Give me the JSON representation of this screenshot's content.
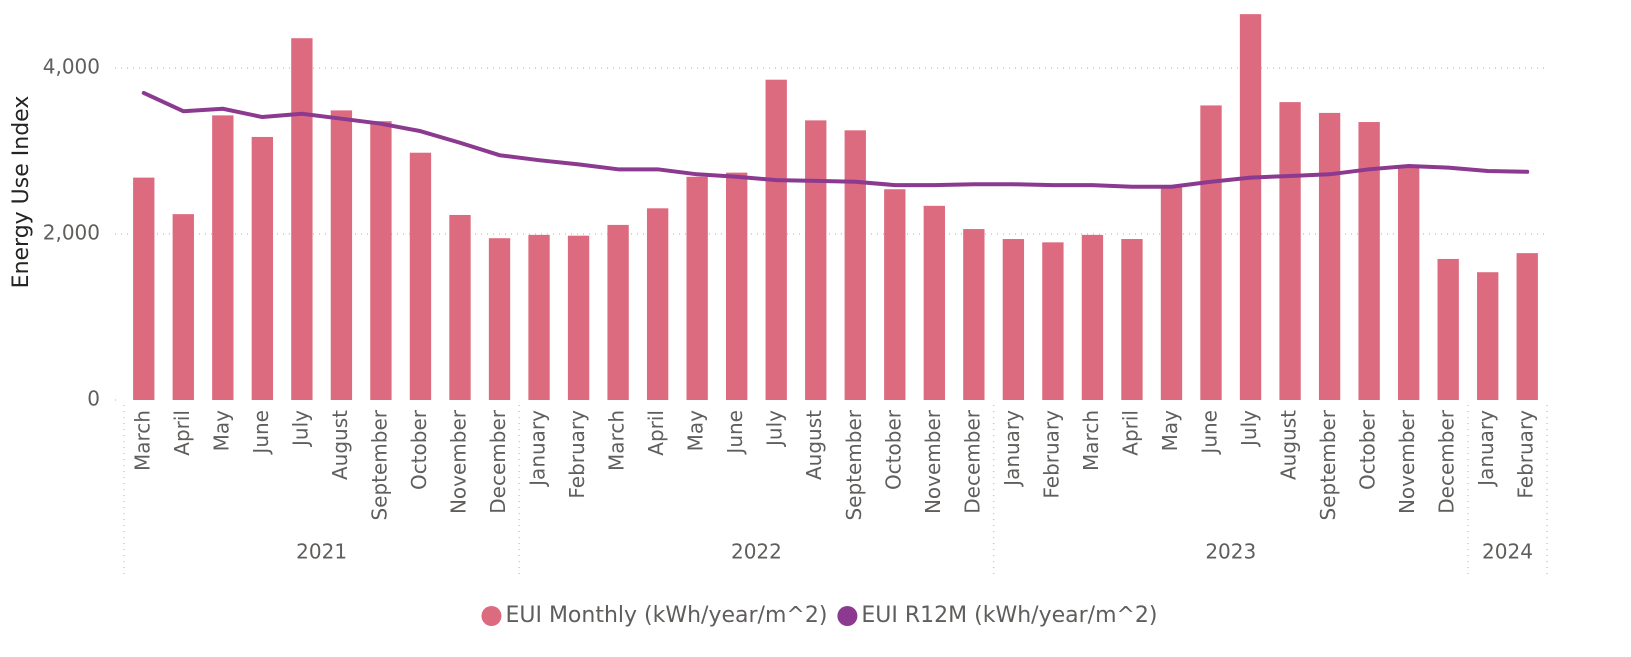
{
  "chart_data": {
    "type": "bar_line",
    "y_label": "Energy Use Index",
    "groups": [
      {
        "label": "2021",
        "categories": [
          "March",
          "April",
          "May",
          "June",
          "July",
          "August",
          "September",
          "October",
          "November",
          "December"
        ]
      },
      {
        "label": "2022",
        "categories": [
          "January",
          "February",
          "March",
          "April",
          "May",
          "June",
          "July",
          "August",
          "September",
          "October",
          "November",
          "December"
        ]
      },
      {
        "label": "2023",
        "categories": [
          "January",
          "February",
          "March",
          "April",
          "May",
          "June",
          "July",
          "August",
          "September",
          "October",
          "November",
          "December"
        ]
      },
      {
        "label": "2024",
        "categories": [
          "January",
          "February"
        ]
      }
    ],
    "series": [
      {
        "name": "EUI Monthly (kWh/year/m^2)",
        "type": "bar",
        "color": "#dd6b7f",
        "values": [
          2680,
          2240,
          3430,
          3170,
          4360,
          3490,
          3360,
          2980,
          2230,
          1950,
          1990,
          1980,
          2110,
          2310,
          2690,
          2740,
          3860,
          3370,
          3250,
          2540,
          2340,
          2060,
          1940,
          1900,
          1990,
          1940,
          2590,
          3550,
          4650,
          3590,
          3460,
          3350,
          2810,
          1700,
          1540,
          1770
        ]
      },
      {
        "name": "EUI R12M (kWh/year/m^2)",
        "type": "line",
        "color": "#8b3a8f",
        "values": [
          3700,
          3480,
          3510,
          3410,
          3450,
          3390,
          3330,
          3240,
          3100,
          2950,
          2890,
          2840,
          2780,
          2780,
          2720,
          2690,
          2650,
          2640,
          2630,
          2590,
          2590,
          2600,
          2600,
          2590,
          2590,
          2570,
          2570,
          2630,
          2680,
          2700,
          2720,
          2780,
          2820,
          2800,
          2760,
          2750
        ]
      }
    ],
    "ylim": [
      0,
      4700
    ],
    "yticks": [
      0,
      {
        "value": 2000,
        "label": "2,000"
      },
      {
        "value": 4000,
        "label": "4,000"
      }
    ],
    "grid": true,
    "legend": "bottom"
  }
}
